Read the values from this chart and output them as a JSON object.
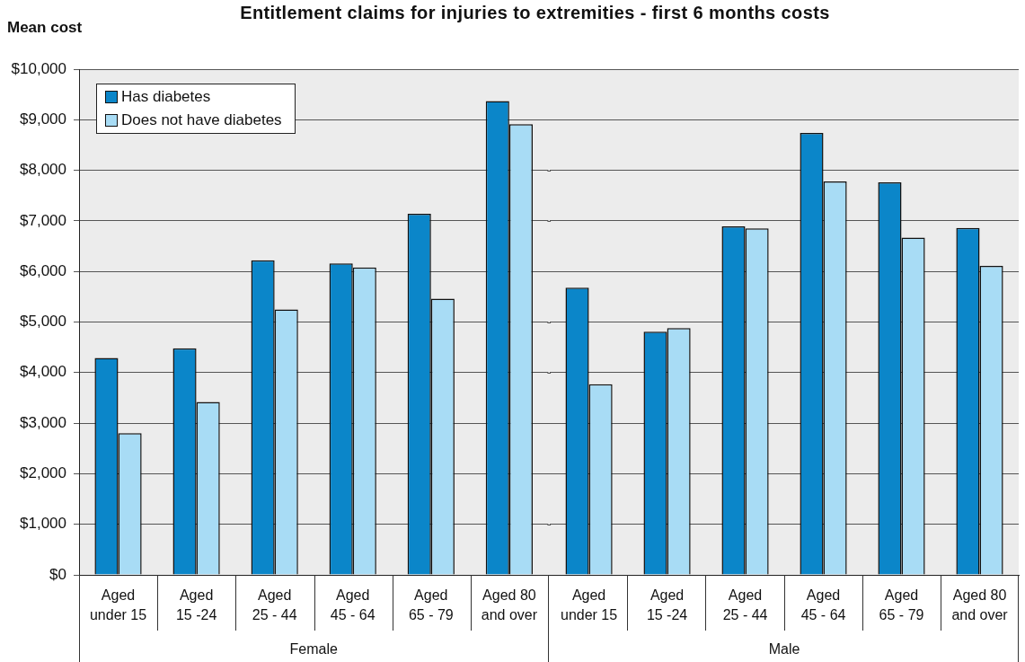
{
  "chart_data": [
    {
      "type": "bar",
      "title": "Entitlement claims for injuries to extremities - first 6 months costs",
      "ylabel": "Mean cost",
      "xlabel": "Female",
      "categories": [
        "Aged under 15",
        "Aged 15 -24",
        "Aged 25 - 44",
        "Aged 45 - 64",
        "Aged 65 - 79",
        "Aged 80 and over"
      ],
      "series": [
        {
          "name": "Has diabetes",
          "color": "#0b86c9",
          "values": [
            4290,
            4480,
            6220,
            6160,
            7140,
            9370
          ]
        },
        {
          "name": "Does not have diabetes",
          "color": "#a8dcf5",
          "values": [
            2800,
            3420,
            5250,
            6080,
            5460,
            8910
          ]
        }
      ],
      "ylim": [
        0,
        10000
      ],
      "yticks": [
        {
          "value": 0,
          "label": "$0"
        },
        {
          "value": 1000,
          "label": "$1,000"
        },
        {
          "value": 2000,
          "label": "$2,000"
        },
        {
          "value": 3000,
          "label": "$3,000"
        },
        {
          "value": 4000,
          "label": "$4,000"
        },
        {
          "value": 5000,
          "label": "$5,000"
        },
        {
          "value": 6000,
          "label": "$6,000"
        },
        {
          "value": 7000,
          "label": "$7,000"
        },
        {
          "value": 8000,
          "label": "$8,000"
        },
        {
          "value": 9000,
          "label": "$9,000"
        },
        {
          "value": 10000,
          "label": "$10,000"
        }
      ],
      "grid": "y",
      "legend": "top left"
    },
    {
      "type": "bar",
      "xlabel": "Male",
      "categories": [
        "Aged under 15",
        "Aged 15 -24",
        "Aged 25 - 44",
        "Aged 45 - 64",
        "Aged 65 - 79",
        "Aged 80 and over"
      ],
      "series": [
        {
          "color": "#0b86c9",
          "values": [
            5680,
            4810,
            6890,
            8740,
            7760,
            6860
          ]
        },
        {
          "color": "#a8dcf5",
          "values": [
            3770,
            4880,
            6850,
            7780,
            6670,
            6110
          ]
        }
      ],
      "ylim": [
        0,
        10000
      ],
      "yticks": [
        0,
        1000,
        2000,
        3000,
        4000,
        5000,
        6000,
        7000,
        8000,
        9000,
        10000
      ],
      "grid": "y",
      "tick_labels": "x"
    }
  ]
}
